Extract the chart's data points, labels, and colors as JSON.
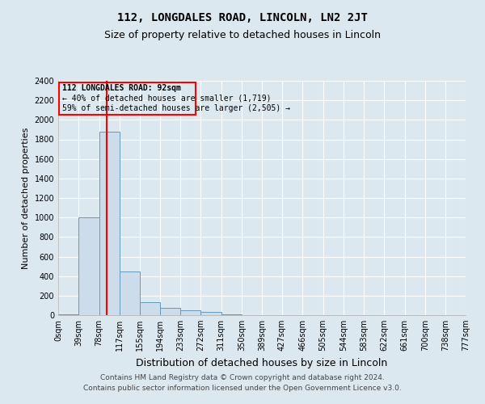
{
  "title": "112, LONGDALES ROAD, LINCOLN, LN2 2JT",
  "subtitle": "Size of property relative to detached houses in Lincoln",
  "xlabel": "Distribution of detached houses by size in Lincoln",
  "ylabel": "Number of detached properties",
  "property_size": 92,
  "property_label": "112 LONGDALES ROAD: 92sqm",
  "annotation_line1": "← 40% of detached houses are smaller (1,719)",
  "annotation_line2": "59% of semi-detached houses are larger (2,505) →",
  "footer1": "Contains HM Land Registry data © Crown copyright and database right 2024.",
  "footer2": "Contains public sector information licensed under the Open Government Licence v3.0.",
  "bin_edges": [
    0,
    39,
    78,
    117,
    155,
    194,
    233,
    272,
    311,
    350,
    389,
    427,
    466,
    505,
    544,
    583,
    622,
    661,
    700,
    738,
    777
  ],
  "bar_heights": [
    8,
    1000,
    1875,
    450,
    130,
    75,
    50,
    30,
    5,
    2,
    1,
    0,
    0,
    0,
    0,
    0,
    0,
    0,
    0,
    0
  ],
  "bar_color": "#ccdcea",
  "bar_edge_color": "#6699bb",
  "red_line_x": 92,
  "ylim": [
    0,
    2400
  ],
  "yticks": [
    0,
    200,
    400,
    600,
    800,
    1000,
    1200,
    1400,
    1600,
    1800,
    2000,
    2200,
    2400
  ],
  "xtick_labels": [
    "0sqm",
    "39sqm",
    "78sqm",
    "117sqm",
    "155sqm",
    "194sqm",
    "233sqm",
    "272sqm",
    "311sqm",
    "350sqm",
    "389sqm",
    "427sqm",
    "466sqm",
    "505sqm",
    "544sqm",
    "583sqm",
    "622sqm",
    "661sqm",
    "700sqm",
    "738sqm",
    "777sqm"
  ],
  "bg_color": "#dce8f0",
  "plot_bg_color": "#dce8f0",
  "grid_color": "#ffffff",
  "title_fontsize": 10,
  "subtitle_fontsize": 9,
  "axis_label_fontsize": 8,
  "tick_fontsize": 7,
  "footer_fontsize": 6.5,
  "annot_fontsize": 7
}
